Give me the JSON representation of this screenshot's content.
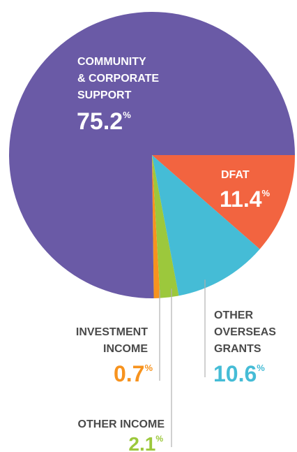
{
  "chart_data": {
    "type": "pie",
    "slices": [
      {
        "label_lines": [
          "COMMUNITY",
          "& CORPORATE",
          "SUPPORT"
        ],
        "value": 75.2,
        "display": "75.2",
        "unit": "%",
        "color": "#6a5aa6"
      },
      {
        "label_lines": [
          "DFAT"
        ],
        "value": 11.4,
        "display": "11.4",
        "unit": "%",
        "color": "#f26440"
      },
      {
        "label_lines": [
          "OTHER",
          "OVERSEAS",
          "GRANTS"
        ],
        "value": 10.6,
        "display": "10.6",
        "unit": "%",
        "color": "#45bcd6"
      },
      {
        "label_lines": [
          "OTHER INCOME"
        ],
        "value": 2.1,
        "display": "2.1",
        "unit": "%",
        "color": "#9cc83c"
      },
      {
        "label_lines": [
          "INVESTMENT",
          "INCOME"
        ],
        "value": 0.7,
        "display": "0.7",
        "unit": "%",
        "color": "#f7931e"
      }
    ],
    "label_text_color": "#4a4a4a",
    "leader_line_color": "#b0b0b0"
  }
}
